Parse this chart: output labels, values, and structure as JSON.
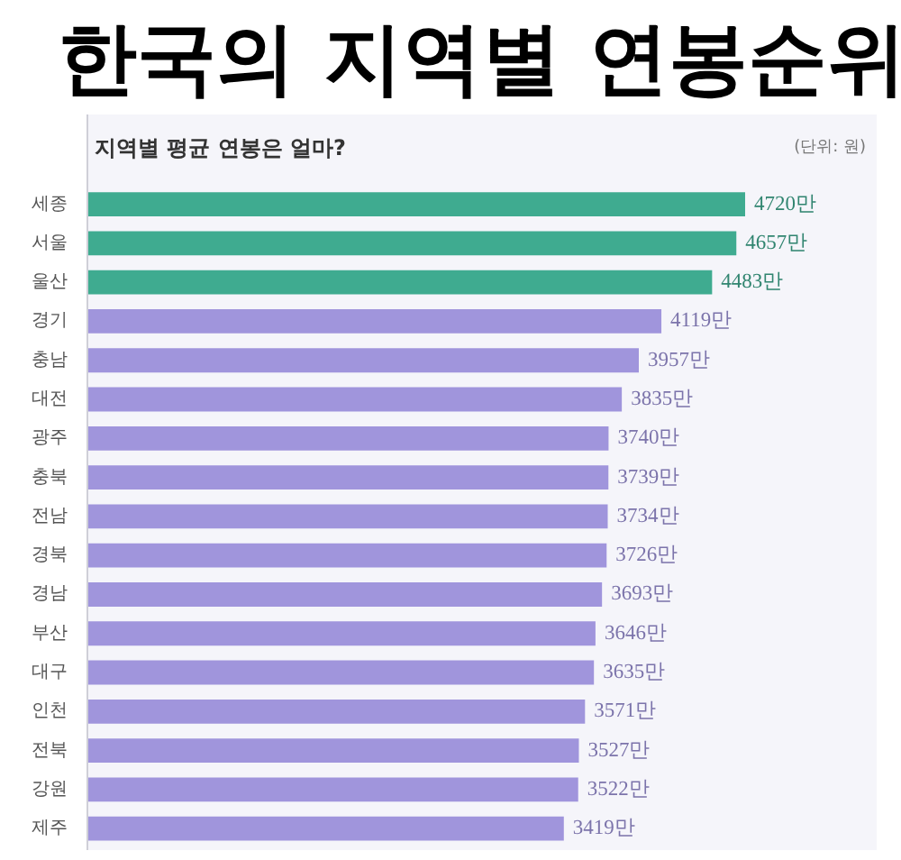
{
  "chart_data": {
    "type": "bar",
    "orientation": "horizontal",
    "title": "한국의 지역별 연봉순위",
    "subtitle": "지역별 평균 연봉은 얼마?",
    "annotations": [
      "(단위: 원)"
    ],
    "tick_labels": "y",
    "categories": [
      "세종",
      "서울",
      "울산",
      "경기",
      "충남",
      "대전",
      "광주",
      "충북",
      "전남",
      "경북",
      "경남",
      "부산",
      "대구",
      "인천",
      "전북",
      "강원",
      "제주"
    ],
    "values": [
      4720,
      4657,
      4483,
      4119,
      3957,
      3835,
      3740,
      3739,
      3734,
      3726,
      3693,
      3646,
      3635,
      3571,
      3527,
      3522,
      3419
    ],
    "colors": [
      "#3fab90",
      "#3fab90",
      "#3fab90",
      "#a095dc",
      "#a095dc",
      "#a095dc",
      "#a095dc",
      "#a095dc",
      "#a095dc",
      "#a095dc",
      "#a095dc",
      "#a095dc",
      "#a095dc",
      "#a095dc",
      "#a095dc",
      "#a095dc",
      "#a095dc"
    ],
    "value_labels": [
      "4720만",
      "4657만",
      "4483만",
      "4119만",
      "3957만",
      "3835만",
      "3740만",
      "3739만",
      "3734만",
      "3726만",
      "3693만",
      "3646만",
      "3635만",
      "3571만",
      "3527만",
      "3522만",
      "3419만"
    ]
  }
}
